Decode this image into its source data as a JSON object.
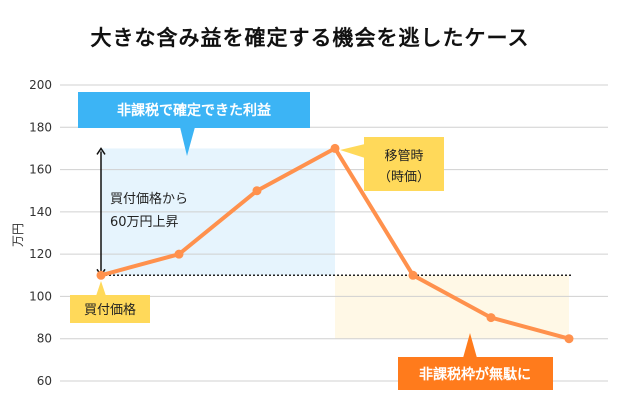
{
  "chart_data": {
    "type": "line",
    "title": "大きな含み益を確定する機会を逃したケース",
    "ylabel": "万円",
    "xlabel": "",
    "ylim": [
      60,
      200
    ],
    "yticks": [
      60,
      80,
      100,
      120,
      140,
      160,
      180,
      200
    ],
    "grid": true,
    "values": [
      110,
      120,
      150,
      170,
      110,
      90,
      80
    ],
    "reference_line": 110,
    "line_color": "#ff914d",
    "annotations": {
      "profit_callout": "非課税で確定できた利益",
      "rise_note_1": "買付価格から",
      "rise_note_2": "60万円上昇",
      "transfer_1": "移管時",
      "transfer_2": "（時価）",
      "purchase": "買付価格",
      "wasted": "非課税枠が無駄に"
    },
    "colors": {
      "blue": "#3cb4f5",
      "yellow": "#ffd95a",
      "orange": "#ff7b1c",
      "blue_area": "#e6f4fd",
      "yellow_area": "#fff8e6"
    }
  }
}
